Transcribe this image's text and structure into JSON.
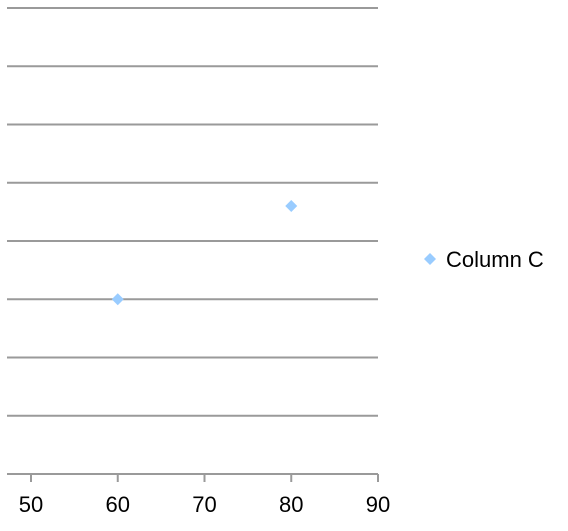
{
  "chart_data": {
    "type": "scatter",
    "title": "",
    "xlabel": "",
    "ylabel": "",
    "xlim": [
      50,
      90
    ],
    "x_ticks": [
      50,
      60,
      70,
      80,
      90
    ],
    "ylim": [
      0,
      8
    ],
    "y_gridlines": 9,
    "grid": "horizontal",
    "legend_position": "right",
    "series": [
      {
        "name": "Column C",
        "color": "#99ccff",
        "marker": "diamond",
        "points": [
          {
            "x": 60,
            "y": 3.0
          },
          {
            "x": 80,
            "y": 4.6
          }
        ]
      }
    ]
  }
}
